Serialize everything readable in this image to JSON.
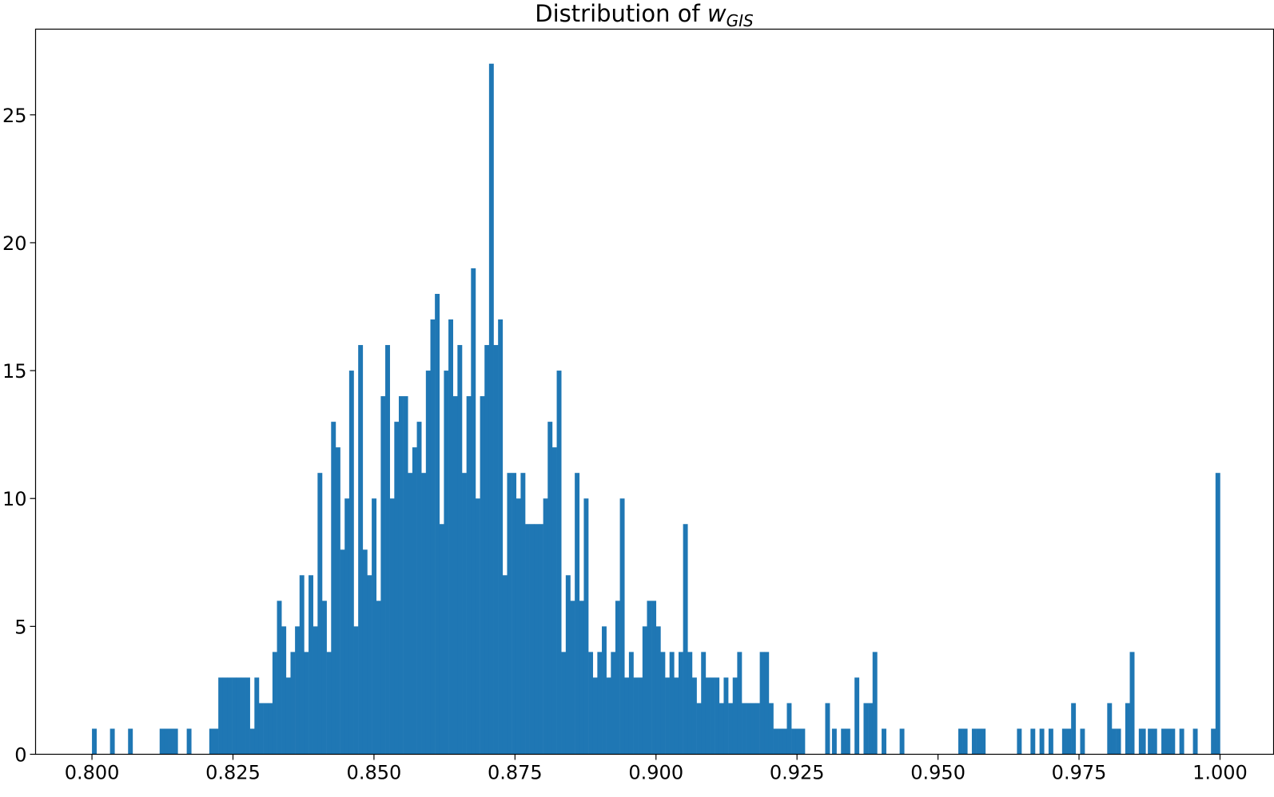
{
  "chart_data": {
    "type": "bar",
    "title": "Distribution of ",
    "title_symbol": "w",
    "title_subscript": "GIS",
    "xlabel": "",
    "ylabel": "",
    "xlim": [
      0.79,
      1.0095
    ],
    "ylim": [
      0,
      28.35
    ],
    "x_ticks": [
      "0.800",
      "0.825",
      "0.850",
      "0.875",
      "0.900",
      "0.925",
      "0.950",
      "0.975",
      "1.000"
    ],
    "y_ticks": [
      "0",
      "5",
      "10",
      "15",
      "20",
      "25"
    ],
    "bin_width": 0.000798,
    "bar_color": "#1f77b4",
    "grid": false,
    "bins": [
      [
        0.8,
        1
      ],
      [
        0.8032,
        1
      ],
      [
        0.8064,
        1
      ],
      [
        0.812,
        1
      ],
      [
        0.8128,
        1
      ],
      [
        0.8136,
        1
      ],
      [
        0.8144,
        1
      ],
      [
        0.8168,
        1
      ],
      [
        0.8208,
        1
      ],
      [
        0.8216,
        1
      ],
      [
        0.8224,
        3
      ],
      [
        0.8232,
        3
      ],
      [
        0.824,
        3
      ],
      [
        0.8248,
        3
      ],
      [
        0.8256,
        3
      ],
      [
        0.8264,
        3
      ],
      [
        0.8272,
        3
      ],
      [
        0.828,
        1
      ],
      [
        0.8288,
        3
      ],
      [
        0.8296,
        2
      ],
      [
        0.8304,
        2
      ],
      [
        0.8312,
        2
      ],
      [
        0.832,
        4
      ],
      [
        0.8328,
        6
      ],
      [
        0.8336,
        5
      ],
      [
        0.8344,
        3
      ],
      [
        0.8352,
        4
      ],
      [
        0.836,
        5
      ],
      [
        0.8368,
        7
      ],
      [
        0.8376,
        4
      ],
      [
        0.8384,
        7
      ],
      [
        0.8392,
        5
      ],
      [
        0.84,
        11
      ],
      [
        0.8408,
        6
      ],
      [
        0.8416,
        4
      ],
      [
        0.8424,
        13
      ],
      [
        0.8432,
        12
      ],
      [
        0.844,
        8
      ],
      [
        0.8448,
        10
      ],
      [
        0.8456,
        15
      ],
      [
        0.8464,
        5
      ],
      [
        0.8472,
        16
      ],
      [
        0.848,
        8
      ],
      [
        0.8488,
        7
      ],
      [
        0.8496,
        10
      ],
      [
        0.8504,
        6
      ],
      [
        0.8512,
        14
      ],
      [
        0.852,
        16
      ],
      [
        0.8528,
        10
      ],
      [
        0.8536,
        13
      ],
      [
        0.8544,
        14
      ],
      [
        0.8552,
        14
      ],
      [
        0.856,
        11
      ],
      [
        0.8568,
        12
      ],
      [
        0.8576,
        13
      ],
      [
        0.8584,
        11
      ],
      [
        0.8592,
        15
      ],
      [
        0.86,
        17
      ],
      [
        0.8608,
        18
      ],
      [
        0.8616,
        9
      ],
      [
        0.8624,
        15
      ],
      [
        0.8632,
        17
      ],
      [
        0.864,
        14
      ],
      [
        0.8648,
        16
      ],
      [
        0.8656,
        11
      ],
      [
        0.8664,
        14
      ],
      [
        0.8672,
        19
      ],
      [
        0.868,
        10
      ],
      [
        0.8688,
        14
      ],
      [
        0.8696,
        16
      ],
      [
        0.8704,
        27
      ],
      [
        0.8712,
        16
      ],
      [
        0.872,
        17
      ],
      [
        0.8728,
        7
      ],
      [
        0.8736,
        11
      ],
      [
        0.8744,
        11
      ],
      [
        0.8752,
        10
      ],
      [
        0.876,
        11
      ],
      [
        0.8768,
        9
      ],
      [
        0.8776,
        9
      ],
      [
        0.8784,
        9
      ],
      [
        0.8792,
        9
      ],
      [
        0.88,
        10
      ],
      [
        0.8808,
        13
      ],
      [
        0.8816,
        12
      ],
      [
        0.8824,
        15
      ],
      [
        0.8832,
        4
      ],
      [
        0.884,
        7
      ],
      [
        0.8848,
        6
      ],
      [
        0.8856,
        11
      ],
      [
        0.8864,
        6
      ],
      [
        0.8872,
        10
      ],
      [
        0.888,
        4
      ],
      [
        0.8888,
        3
      ],
      [
        0.8896,
        4
      ],
      [
        0.8904,
        5
      ],
      [
        0.8912,
        3
      ],
      [
        0.892,
        4
      ],
      [
        0.8928,
        6
      ],
      [
        0.8936,
        10
      ],
      [
        0.8944,
        3
      ],
      [
        0.8952,
        4
      ],
      [
        0.896,
        3
      ],
      [
        0.8968,
        3
      ],
      [
        0.8976,
        5
      ],
      [
        0.8984,
        6
      ],
      [
        0.8992,
        6
      ],
      [
        0.9,
        5
      ],
      [
        0.9008,
        4
      ],
      [
        0.9016,
        3
      ],
      [
        0.9024,
        4
      ],
      [
        0.9032,
        3
      ],
      [
        0.904,
        4
      ],
      [
        0.9048,
        9
      ],
      [
        0.9056,
        4
      ],
      [
        0.9064,
        3
      ],
      [
        0.9072,
        2
      ],
      [
        0.908,
        4
      ],
      [
        0.9088,
        3
      ],
      [
        0.9096,
        3
      ],
      [
        0.9104,
        3
      ],
      [
        0.9112,
        2
      ],
      [
        0.912,
        3
      ],
      [
        0.9128,
        2
      ],
      [
        0.9136,
        3
      ],
      [
        0.9144,
        4
      ],
      [
        0.9152,
        2
      ],
      [
        0.916,
        2
      ],
      [
        0.9168,
        2
      ],
      [
        0.9176,
        2
      ],
      [
        0.9184,
        4
      ],
      [
        0.9192,
        4
      ],
      [
        0.92,
        2
      ],
      [
        0.9208,
        1
      ],
      [
        0.9216,
        1
      ],
      [
        0.9224,
        1
      ],
      [
        0.9232,
        2
      ],
      [
        0.924,
        1
      ],
      [
        0.9248,
        1
      ],
      [
        0.9256,
        1
      ],
      [
        0.93,
        2
      ],
      [
        0.9312,
        1
      ],
      [
        0.9328,
        1
      ],
      [
        0.9336,
        1
      ],
      [
        0.9352,
        3
      ],
      [
        0.9368,
        2
      ],
      [
        0.9376,
        2
      ],
      [
        0.9384,
        4
      ],
      [
        0.94,
        1
      ],
      [
        0.9432,
        1
      ],
      [
        0.9536,
        1
      ],
      [
        0.9544,
        1
      ],
      [
        0.956,
        1
      ],
      [
        0.9568,
        1
      ],
      [
        0.9576,
        1
      ],
      [
        0.964,
        1
      ],
      [
        0.9664,
        1
      ],
      [
        0.968,
        1
      ],
      [
        0.9696,
        1
      ],
      [
        0.972,
        1
      ],
      [
        0.9728,
        1
      ],
      [
        0.9736,
        2
      ],
      [
        0.9752,
        1
      ],
      [
        0.98,
        2
      ],
      [
        0.9808,
        1
      ],
      [
        0.9816,
        1
      ],
      [
        0.9832,
        2
      ],
      [
        0.984,
        4
      ],
      [
        0.9856,
        1
      ],
      [
        0.986,
        1
      ],
      [
        0.9872,
        1
      ],
      [
        0.988,
        1
      ],
      [
        0.9896,
        1
      ],
      [
        0.9904,
        1
      ],
      [
        0.9912,
        1
      ],
      [
        0.9928,
        1
      ],
      [
        0.9952,
        1
      ],
      [
        0.9984,
        1
      ],
      [
        0.9992,
        11
      ]
    ]
  }
}
